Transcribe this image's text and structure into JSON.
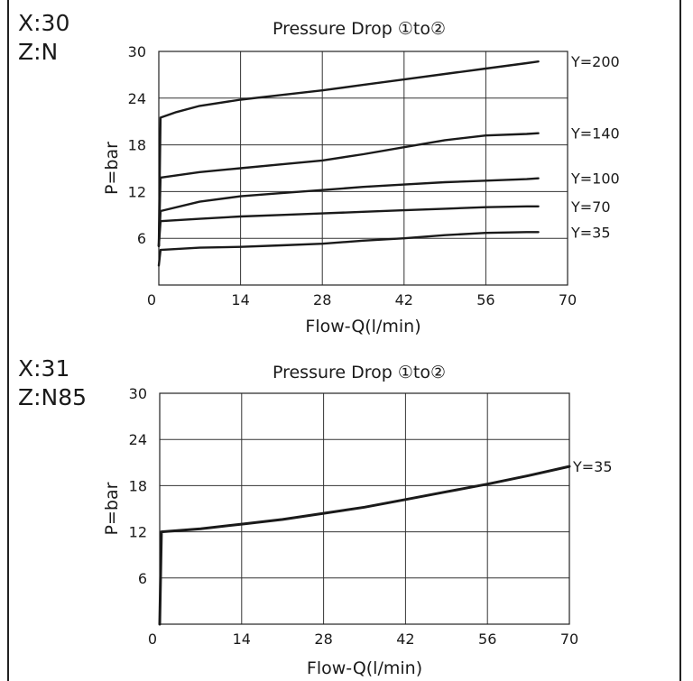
{
  "chart_data": [
    {
      "type": "line",
      "corner_label": [
        "X:30",
        "Z:N"
      ],
      "title": "Pressure Drop ①to②",
      "xlabel": "Flow-Q(l/min)",
      "ylabel": "P=bar",
      "xlim": [
        0,
        70
      ],
      "ylim": [
        0,
        30
      ],
      "xticks": [
        "0",
        "14",
        "28",
        "42",
        "56",
        "70"
      ],
      "yticks": [
        "0",
        "6",
        "12",
        "18",
        "24",
        "30"
      ],
      "grid": true,
      "legend": "series labels at right end of each curve",
      "series": [
        {
          "name": "Y=200",
          "x": [
            0,
            0.3,
            3,
            7,
            14,
            21,
            28,
            35,
            42,
            49,
            56,
            63,
            65
          ],
          "y": [
            5,
            21.5,
            22.2,
            23,
            23.8,
            24.4,
            25,
            25.7,
            26.4,
            27.1,
            27.8,
            28.5,
            28.7
          ]
        },
        {
          "name": "Y=140",
          "x": [
            0,
            0.3,
            7,
            14,
            21,
            28,
            35,
            42,
            49,
            56,
            63,
            65
          ],
          "y": [
            5,
            13.8,
            14.5,
            15,
            15.5,
            16,
            16.8,
            17.7,
            18.6,
            19.2,
            19.4,
            19.5
          ]
        },
        {
          "name": "Y=100",
          "x": [
            0,
            0.3,
            7,
            14,
            21,
            28,
            35,
            42,
            49,
            56,
            63,
            65
          ],
          "y": [
            5,
            9.5,
            10.7,
            11.4,
            11.8,
            12.2,
            12.6,
            12.9,
            13.2,
            13.4,
            13.6,
            13.7
          ]
        },
        {
          "name": "Y=70",
          "x": [
            0,
            0.3,
            7,
            14,
            21,
            28,
            35,
            42,
            49,
            56,
            63,
            65
          ],
          "y": [
            5,
            8.2,
            8.5,
            8.8,
            9,
            9.2,
            9.4,
            9.6,
            9.8,
            10,
            10.1,
            10.1
          ]
        },
        {
          "name": "Y=35",
          "x": [
            0,
            0.3,
            7,
            14,
            21,
            28,
            35,
            42,
            49,
            56,
            63,
            65
          ],
          "y": [
            2.5,
            4.5,
            4.8,
            4.9,
            5.1,
            5.3,
            5.7,
            6,
            6.4,
            6.7,
            6.8,
            6.8
          ]
        }
      ]
    },
    {
      "type": "line",
      "corner_label": [
        "X:31",
        "Z:N85"
      ],
      "title": "Pressure Drop ①to②",
      "xlabel": "Flow-Q(l/min)",
      "ylabel": "P=bar",
      "xlim": [
        0,
        70
      ],
      "ylim": [
        0,
        30
      ],
      "xticks": [
        "0",
        "14",
        "28",
        "42",
        "56",
        "70"
      ],
      "yticks": [
        "0",
        "6",
        "12",
        "18",
        "24",
        "30"
      ],
      "grid": true,
      "legend": "series label at right end of curve",
      "series": [
        {
          "name": "Y=35",
          "x": [
            0,
            0.3,
            7,
            14,
            21,
            28,
            35,
            42,
            49,
            56,
            63,
            70
          ],
          "y": [
            0,
            12,
            12.4,
            13,
            13.6,
            14.4,
            15.2,
            16.2,
            17.2,
            18.2,
            19.3,
            20.5
          ]
        }
      ]
    }
  ]
}
